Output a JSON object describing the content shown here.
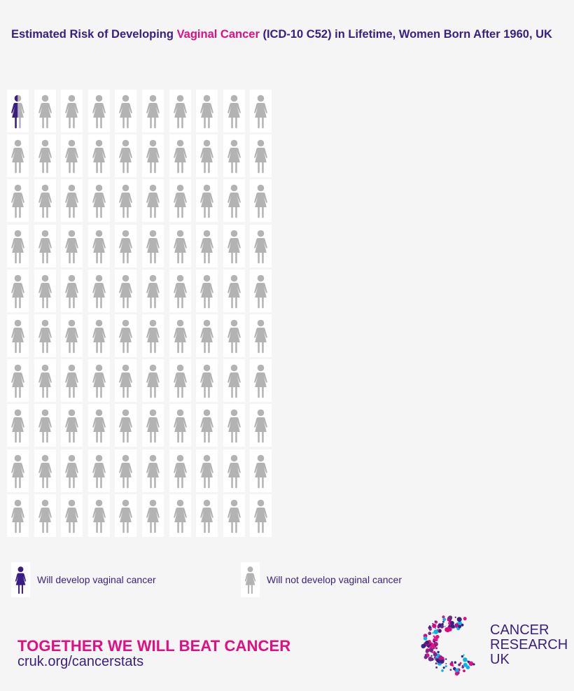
{
  "title": {
    "before": "Estimated Risk of Developing ",
    "highlight": "Vaginal Cancer",
    "after": " (ICD-10 C52) in Lifetime, Women Born After 1960, UK"
  },
  "chart_data": {
    "type": "pictogram",
    "total": 100,
    "columns": 10,
    "rows": 10,
    "affected": 0.5,
    "unit": "women",
    "series": [
      {
        "name": "Will develop vaginal cancer",
        "value": 0.5,
        "color": "#3b1e83"
      },
      {
        "name": "Will not develop vaginal cancer",
        "value": 99.5,
        "color": "#b3b3b3"
      }
    ]
  },
  "legend": {
    "develop": "Will develop vaginal cancer",
    "not_develop": "Will not develop vaginal cancer"
  },
  "footer": {
    "tagline": "TOGETHER WE WILL BEAT CANCER",
    "url": "cruk.org/cancerstats"
  },
  "logo": {
    "line1": "CANCER",
    "line2": "RESEARCH",
    "line3": "UK"
  },
  "colors": {
    "purple": "#3b1e83",
    "pink": "#e20e84",
    "grey": "#b3b3b3"
  }
}
